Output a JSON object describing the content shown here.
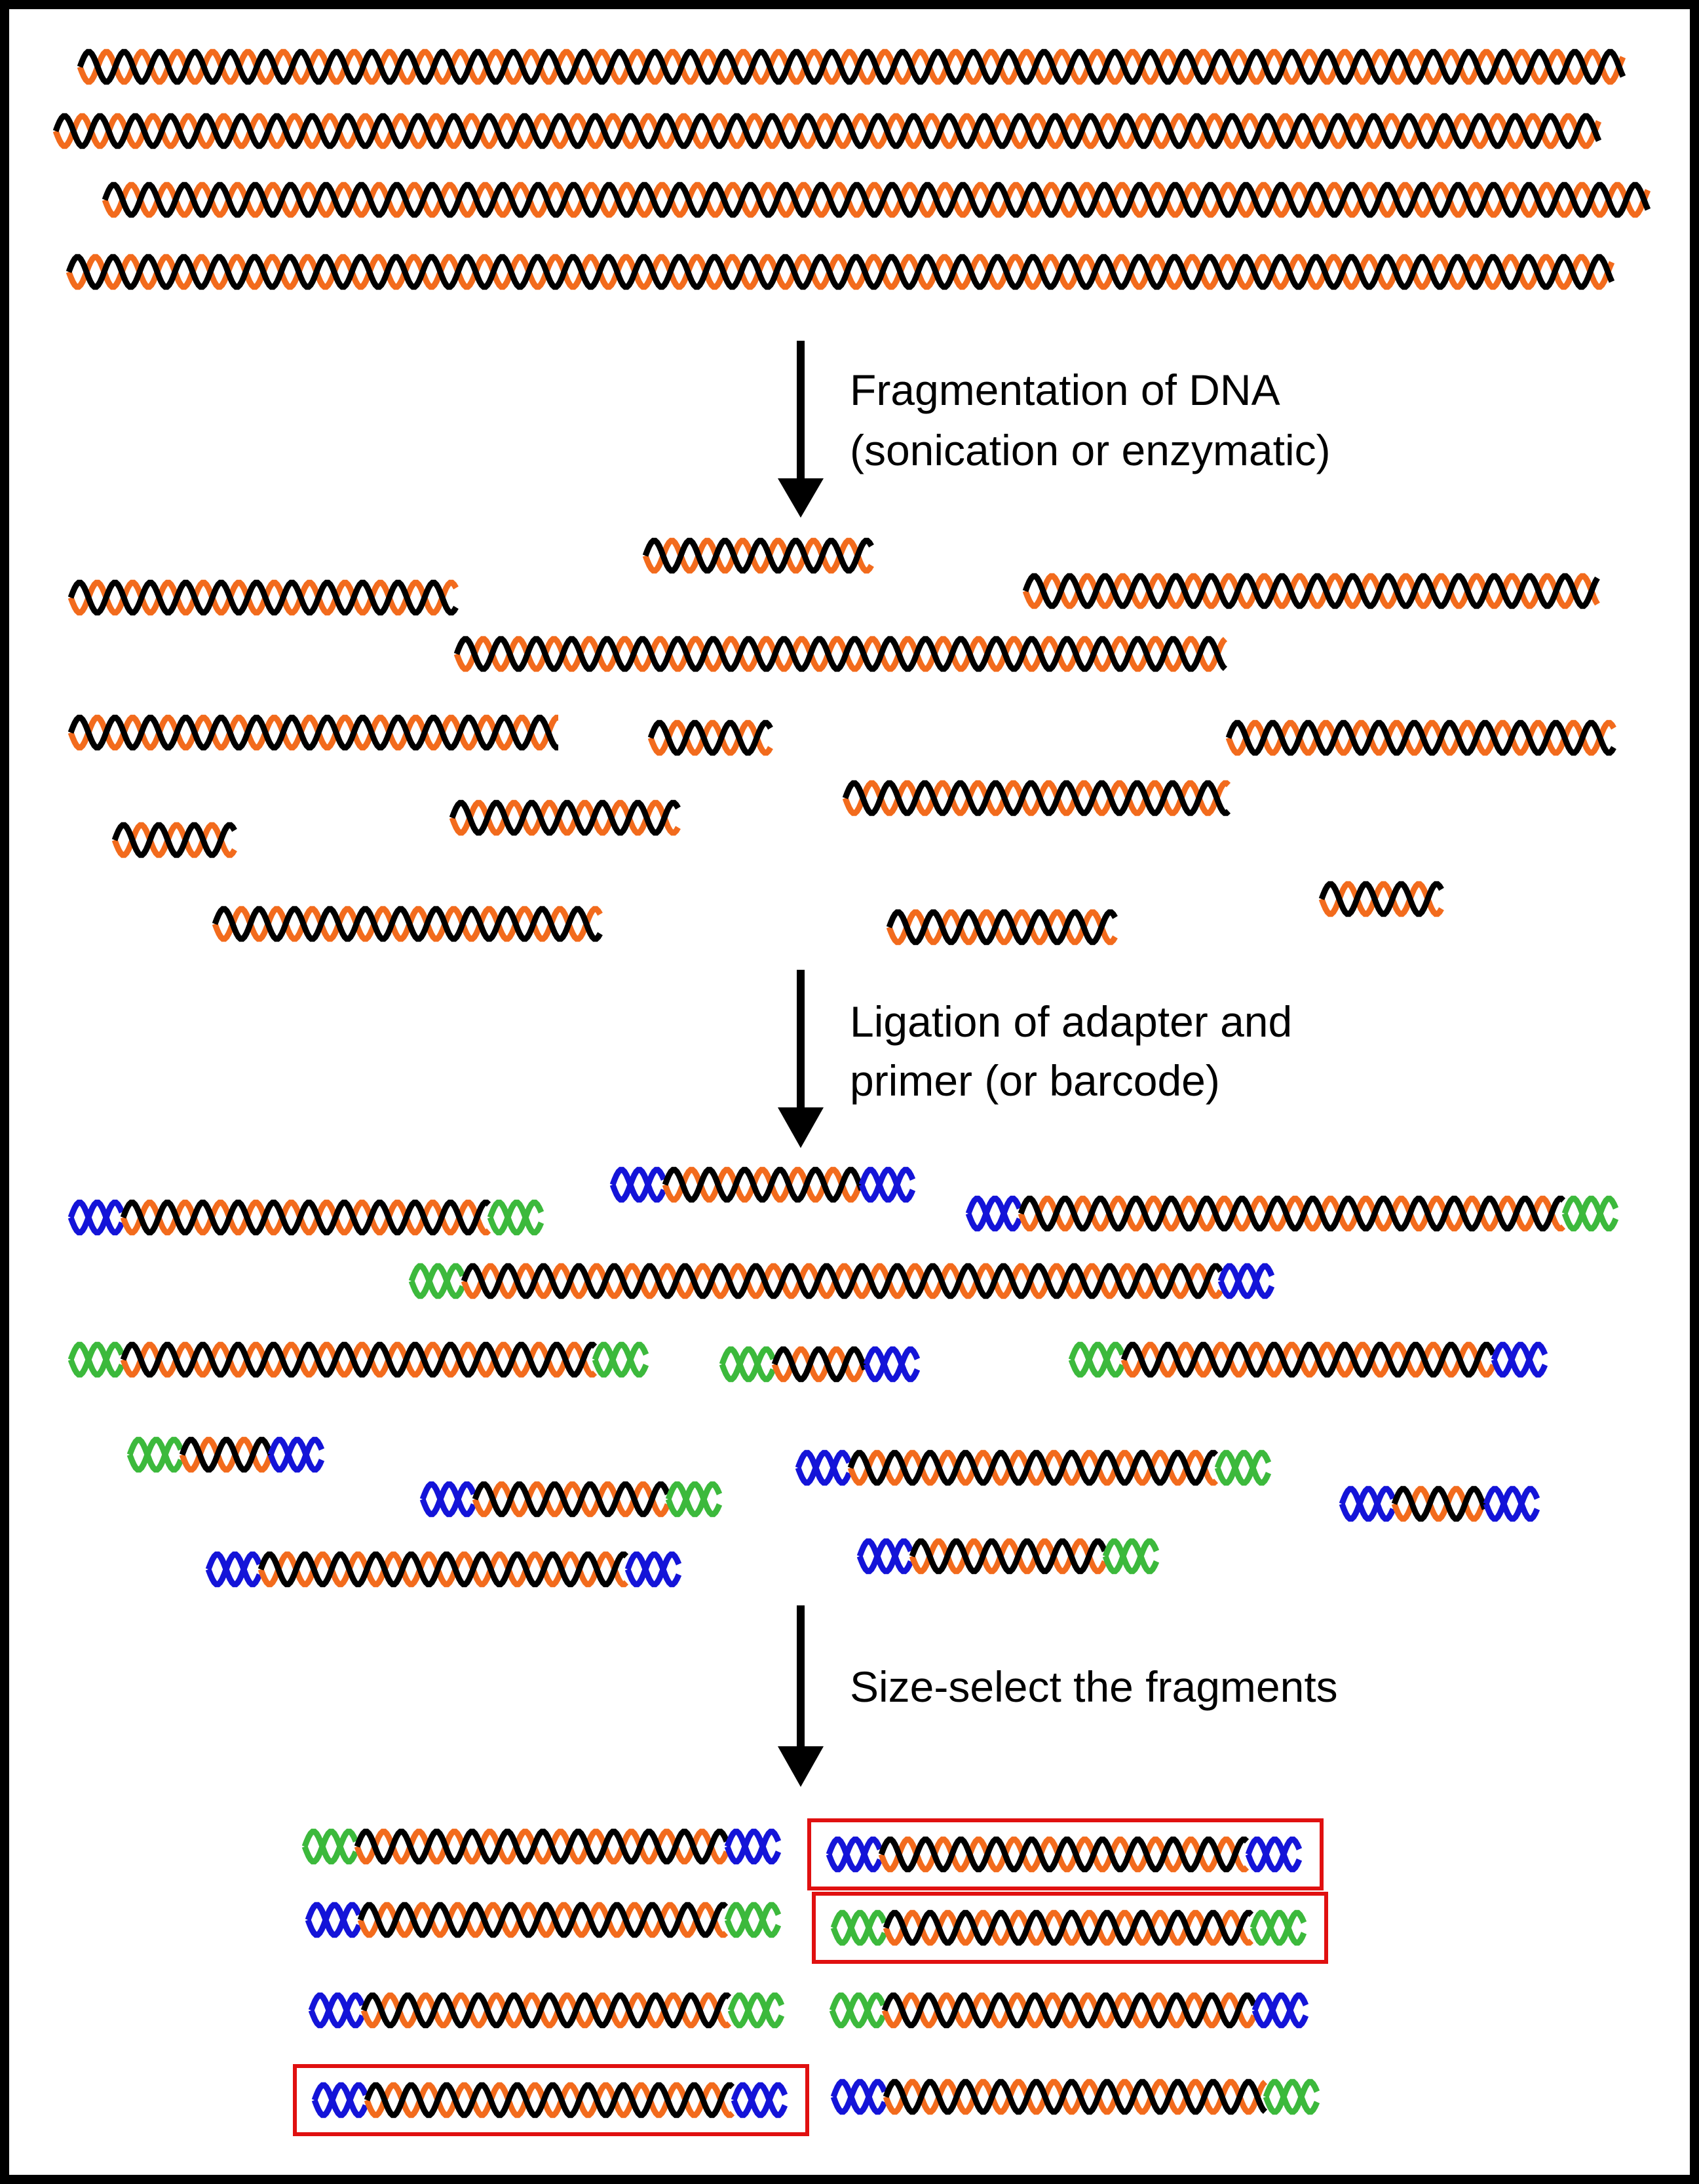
{
  "figure": {
    "steps": [
      {
        "line1": "Fragmentation of DNA",
        "line2": "(sonication or enzymatic)"
      },
      {
        "line1": "Ligation of adapter and",
        "line2": "primer (or barcode)"
      },
      {
        "line1": "Size-select the fragments",
        "line2": ""
      }
    ]
  },
  "colors": {
    "background": "#ffffff",
    "border": "#000000",
    "dna_strand_a": "#f26b1d",
    "dna_strand_b": "#000000",
    "adapter": "#1414d8",
    "primer": "#3cb93c",
    "selection_box": "#e01010",
    "arrow": "#000000"
  },
  "icons": {
    "dna": "double-helix",
    "arrow": "down-arrow",
    "selection": "red-rectangle"
  },
  "stages": {
    "genomic_dna": {
      "fragment_count": 4
    },
    "fragmented_dna": {
      "fragment_count": 12
    },
    "ligated_fragments": {
      "fragment_count": 12
    },
    "size_selected": {
      "fragment_count": 8,
      "selected_count": 3
    }
  }
}
